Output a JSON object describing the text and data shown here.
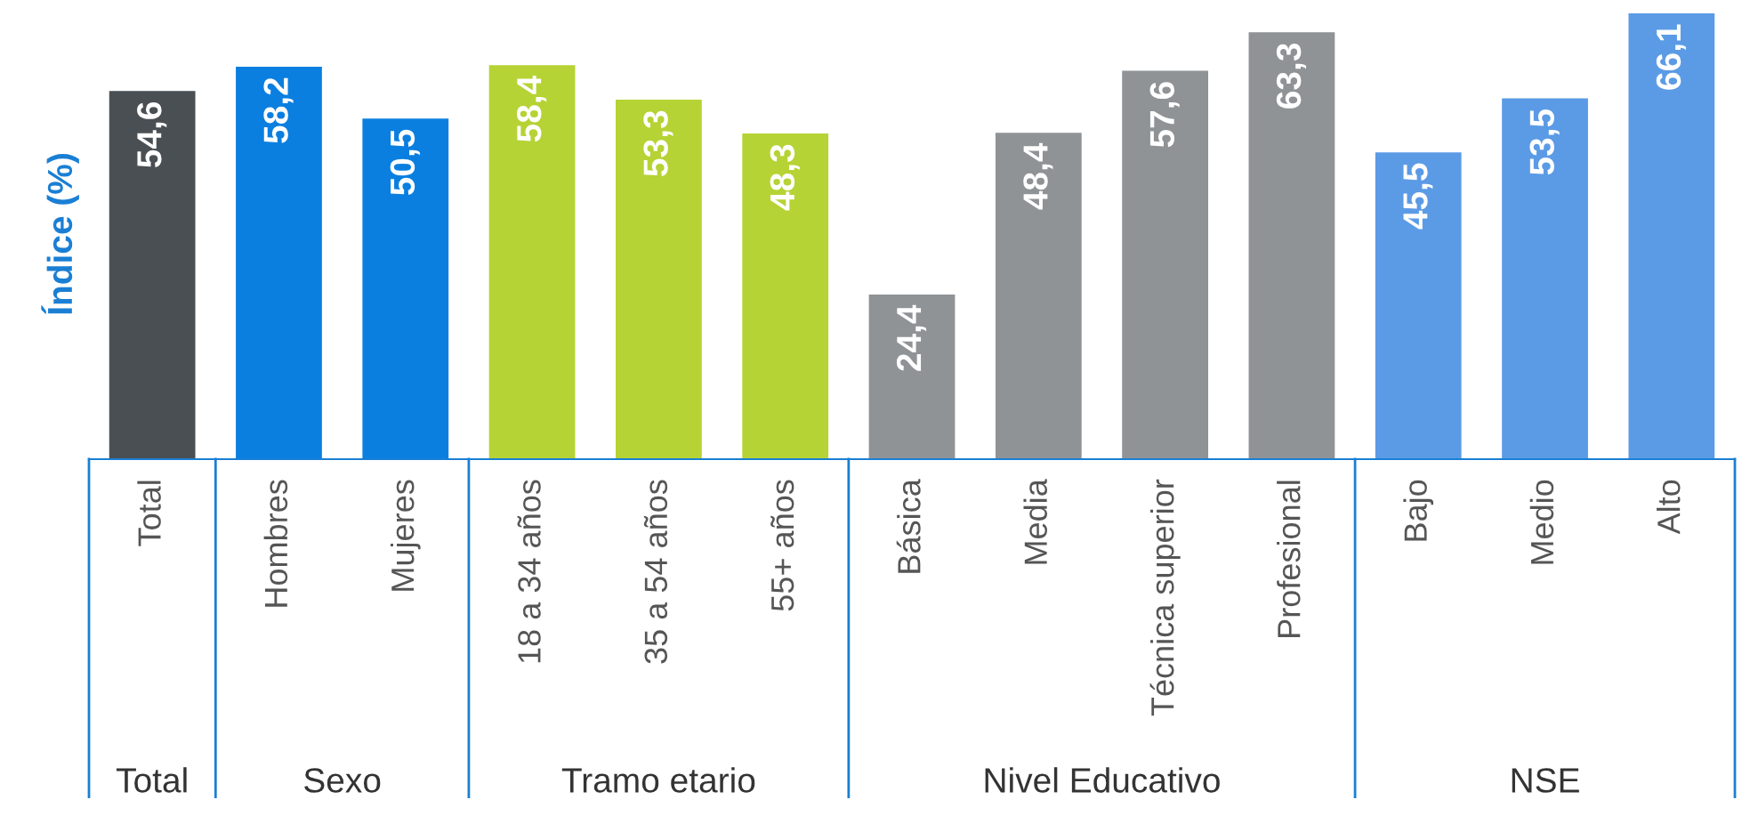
{
  "chart_data": {
    "type": "bar",
    "ylabel": "Índice (%)",
    "categories": [
      "Total",
      "Hombres",
      "Mujeres",
      "18 a 34 años",
      "35 a 54 años",
      "55+ años",
      "Básica",
      "Media",
      "Técnica superior",
      "Profesional",
      "Bajo",
      "Medio",
      "Alto"
    ],
    "values": [
      54.6,
      58.2,
      50.5,
      58.4,
      53.3,
      48.3,
      24.4,
      48.4,
      57.6,
      63.3,
      45.5,
      53.5,
      66.1
    ],
    "colors": [
      "#4a4f54",
      "#0a7fe0",
      "#0a7fe0",
      "#b5d334",
      "#b5d334",
      "#b5d334",
      "#8f9396",
      "#8f9396",
      "#8f9396",
      "#8f9396",
      "#5b9be6",
      "#5b9be6",
      "#5b9be6"
    ],
    "annotations": [
      "Total",
      "Sexo",
      "Tramo etario",
      "Nivel Educativo",
      "NSE"
    ],
    "value_labels": [
      "54,6",
      "58,2",
      "50,5",
      "58,4",
      "53,3",
      "48,3",
      "24,4",
      "48,4",
      "57,6",
      "63,3",
      "45,5",
      "53,5",
      "66,1"
    ],
    "grid": false,
    "legend": false
  }
}
